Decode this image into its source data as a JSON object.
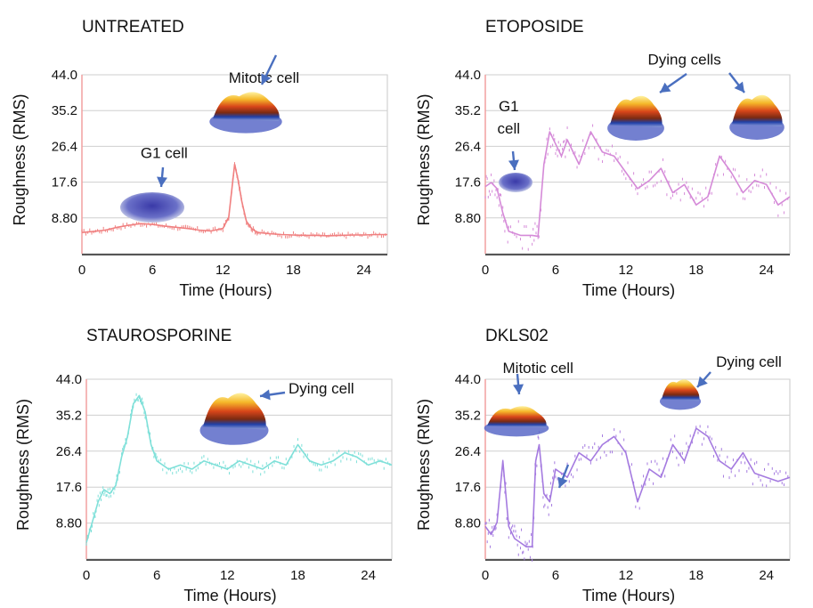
{
  "chart_data": [
    {
      "type": "line",
      "title": "UNTREATED",
      "xlabel": "Time (Hours)",
      "ylabel": "Roughness (RMS)",
      "xlim": [
        0,
        26
      ],
      "ylim": [
        0,
        44
      ],
      "xticks": [
        0,
        6,
        12,
        18,
        24
      ],
      "xtick_labels": [
        "0",
        "6",
        "12",
        "18",
        "24"
      ],
      "yticks": [
        8.8,
        17.6,
        26.4,
        35.2,
        44.0
      ],
      "ytick_labels": [
        "8.80",
        "17.6",
        "26.4",
        "35.2",
        "44.0"
      ],
      "color": "#f08080",
      "series": [
        {
          "name": "untreated",
          "x": [
            0,
            1,
            2,
            3,
            4,
            5,
            6,
            7,
            8,
            9,
            10,
            11,
            12,
            12.5,
            13,
            13.3,
            13.6,
            14,
            14.5,
            15,
            16,
            17,
            18,
            19,
            20,
            21,
            22,
            23,
            24,
            25,
            26
          ],
          "y": [
            5.2,
            5.5,
            5.8,
            6.5,
            7.0,
            7.4,
            7.2,
            6.8,
            6.5,
            6.2,
            5.8,
            5.6,
            6.2,
            9,
            22,
            18,
            13,
            8,
            6,
            5.2,
            4.9,
            4.7,
            4.6,
            4.5,
            4.5,
            4.4,
            4.5,
            4.6,
            4.6,
            4.7,
            4.7
          ]
        }
      ],
      "annotations": [
        {
          "text": "Mitotic cell",
          "at": [
            15.5,
            42.0
          ]
        },
        {
          "text": "G1 cell",
          "at": [
            7.0,
            23.5
          ]
        }
      ]
    },
    {
      "type": "line",
      "title": "ETOPOSIDE",
      "xlabel": "Time (Hours)",
      "ylabel": "Roughness (RMS)",
      "xlim": [
        0,
        26
      ],
      "ylim": [
        0,
        44
      ],
      "xticks": [
        0,
        6,
        12,
        18,
        24
      ],
      "xtick_labels": [
        "0",
        "6",
        "12",
        "18",
        "24"
      ],
      "yticks": [
        8.8,
        17.6,
        26.4,
        35.2,
        44.0
      ],
      "ytick_labels": [
        "8.80",
        "17.6",
        "26.4",
        "35.2",
        "44.0"
      ],
      "color": "#d58ad8",
      "series": [
        {
          "name": "etoposide",
          "x": [
            0,
            0.5,
            1,
            1.5,
            2,
            3,
            4,
            4.5,
            5,
            5.5,
            6,
            6.5,
            7,
            8,
            9,
            10,
            11,
            12,
            13,
            14,
            15,
            16,
            17,
            18,
            19,
            20,
            21,
            22,
            23,
            24,
            25,
            26
          ],
          "y": [
            16.5,
            17.5,
            16,
            10,
            5.5,
            4.5,
            4.5,
            4.3,
            22,
            30,
            27,
            24,
            28,
            22,
            30,
            25,
            24,
            20,
            16,
            18,
            21,
            15,
            17,
            12,
            14,
            24,
            20,
            15,
            18,
            17,
            12,
            14
          ]
        }
      ],
      "annotations": [
        {
          "text": "Dying cells",
          "at": [
            17.0,
            46.5
          ]
        },
        {
          "text": "G1",
          "at": [
            2.0,
            35.0
          ]
        },
        {
          "text": "cell",
          "at": [
            2.0,
            29.5
          ]
        }
      ]
    },
    {
      "type": "line",
      "title": "STAUROSPORINE",
      "xlabel": "Time (Hours)",
      "ylabel": "Roughness (RMS)",
      "xlim": [
        0,
        26
      ],
      "ylim": [
        0,
        44
      ],
      "xticks": [
        0,
        6,
        12,
        18,
        24
      ],
      "xtick_labels": [
        "0",
        "6",
        "12",
        "18",
        "24"
      ],
      "yticks": [
        8.8,
        17.6,
        26.4,
        35.2,
        44.0
      ],
      "ytick_labels": [
        "8.80",
        "17.6",
        "26.4",
        "35.2",
        "44.0"
      ],
      "color": "#7fe0d9",
      "series": [
        {
          "name": "staurosporine",
          "x": [
            0,
            0.5,
            1,
            1.5,
            2,
            2.5,
            3,
            3.5,
            4,
            4.5,
            5,
            5.5,
            6,
            7,
            8,
            9,
            10,
            11,
            12,
            13,
            14,
            15,
            16,
            17,
            18,
            19,
            20,
            21,
            22,
            23,
            24,
            25,
            26
          ],
          "y": [
            4,
            9,
            14,
            17,
            16,
            18,
            25,
            30,
            38,
            40,
            36,
            28,
            24,
            22,
            23,
            22,
            24,
            23,
            22,
            24,
            23,
            22,
            24,
            23,
            28,
            24,
            23,
            24,
            26,
            25,
            23,
            24,
            23
          ]
        }
      ],
      "annotations": [
        {
          "text": "Dying cell",
          "at": [
            20.0,
            40.5
          ]
        }
      ]
    },
    {
      "type": "line",
      "title": "DKLS02",
      "xlabel": "Time (Hours)",
      "ylabel": "Roughness (RMS)",
      "xlim": [
        0,
        26
      ],
      "ylim": [
        0,
        44
      ],
      "xticks": [
        0,
        6,
        12,
        18,
        24
      ],
      "xtick_labels": [
        "0",
        "6",
        "12",
        "18",
        "24"
      ],
      "yticks": [
        8.8,
        17.6,
        26.4,
        35.2,
        44.0
      ],
      "ytick_labels": [
        "8.80",
        "17.6",
        "26.4",
        "35.2",
        "44.0"
      ],
      "color": "#a57be0",
      "series": [
        {
          "name": "dkls02",
          "x": [
            0,
            0.5,
            1,
            1.5,
            2,
            2.5,
            3,
            3.5,
            4,
            4.3,
            4.6,
            5,
            5.5,
            6,
            7,
            8,
            9,
            10,
            11,
            12,
            13,
            14,
            15,
            16,
            17,
            18,
            19,
            20,
            21,
            22,
            23,
            24,
            25,
            26
          ],
          "y": [
            8,
            6,
            9,
            24,
            8,
            5,
            4,
            3,
            3,
            24,
            28,
            16,
            14,
            22,
            20,
            26,
            24,
            28,
            30,
            26,
            14,
            22,
            20,
            28,
            24,
            32,
            30,
            24,
            22,
            26,
            21,
            20,
            19,
            20
          ]
        }
      ],
      "annotations": [
        {
          "text": "Mitotic cell",
          "at": [
            4.5,
            45.5
          ]
        },
        {
          "text": "Dying cell",
          "at": [
            22.5,
            47.0
          ]
        }
      ]
    }
  ]
}
